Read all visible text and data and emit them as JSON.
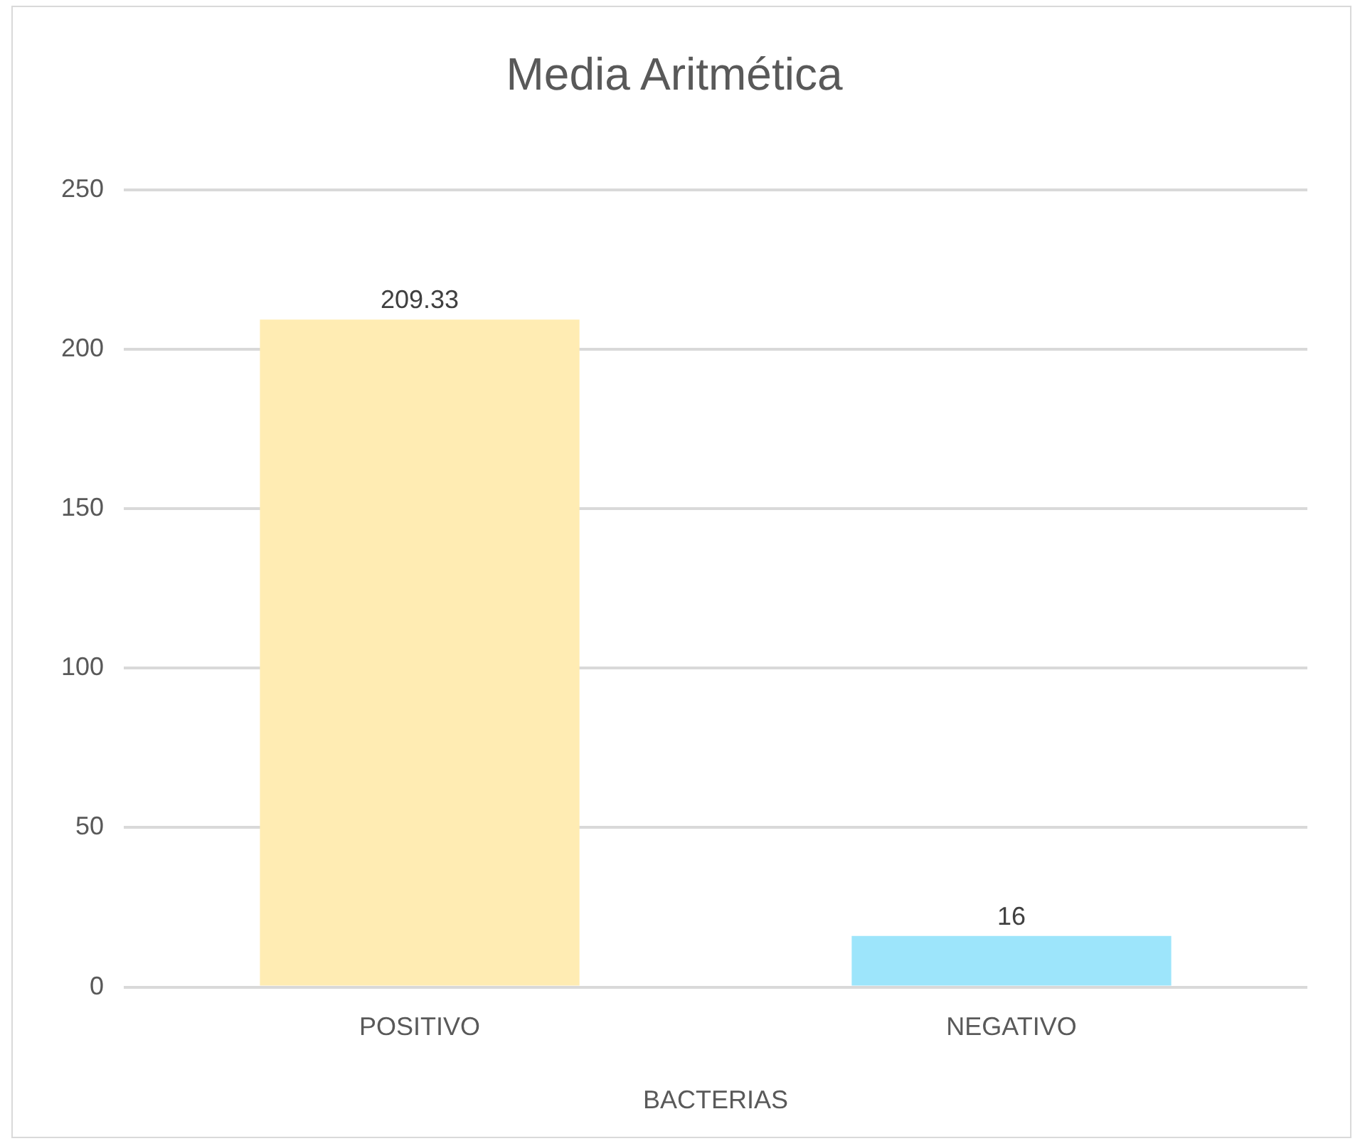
{
  "chart_data": {
    "type": "bar",
    "title": "Media Aritmética",
    "xlabel": "BACTERIAS",
    "categories": [
      "POSITIVO",
      "NEGATIVO"
    ],
    "values": [
      209.33,
      16
    ],
    "colors": [
      "#ffecb3",
      "#9de5fb"
    ],
    "ylim": [
      0,
      250
    ],
    "yticks": [
      0,
      50,
      100,
      150,
      200,
      250
    ],
    "grid": "y",
    "data_labels": true,
    "legend": false
  }
}
